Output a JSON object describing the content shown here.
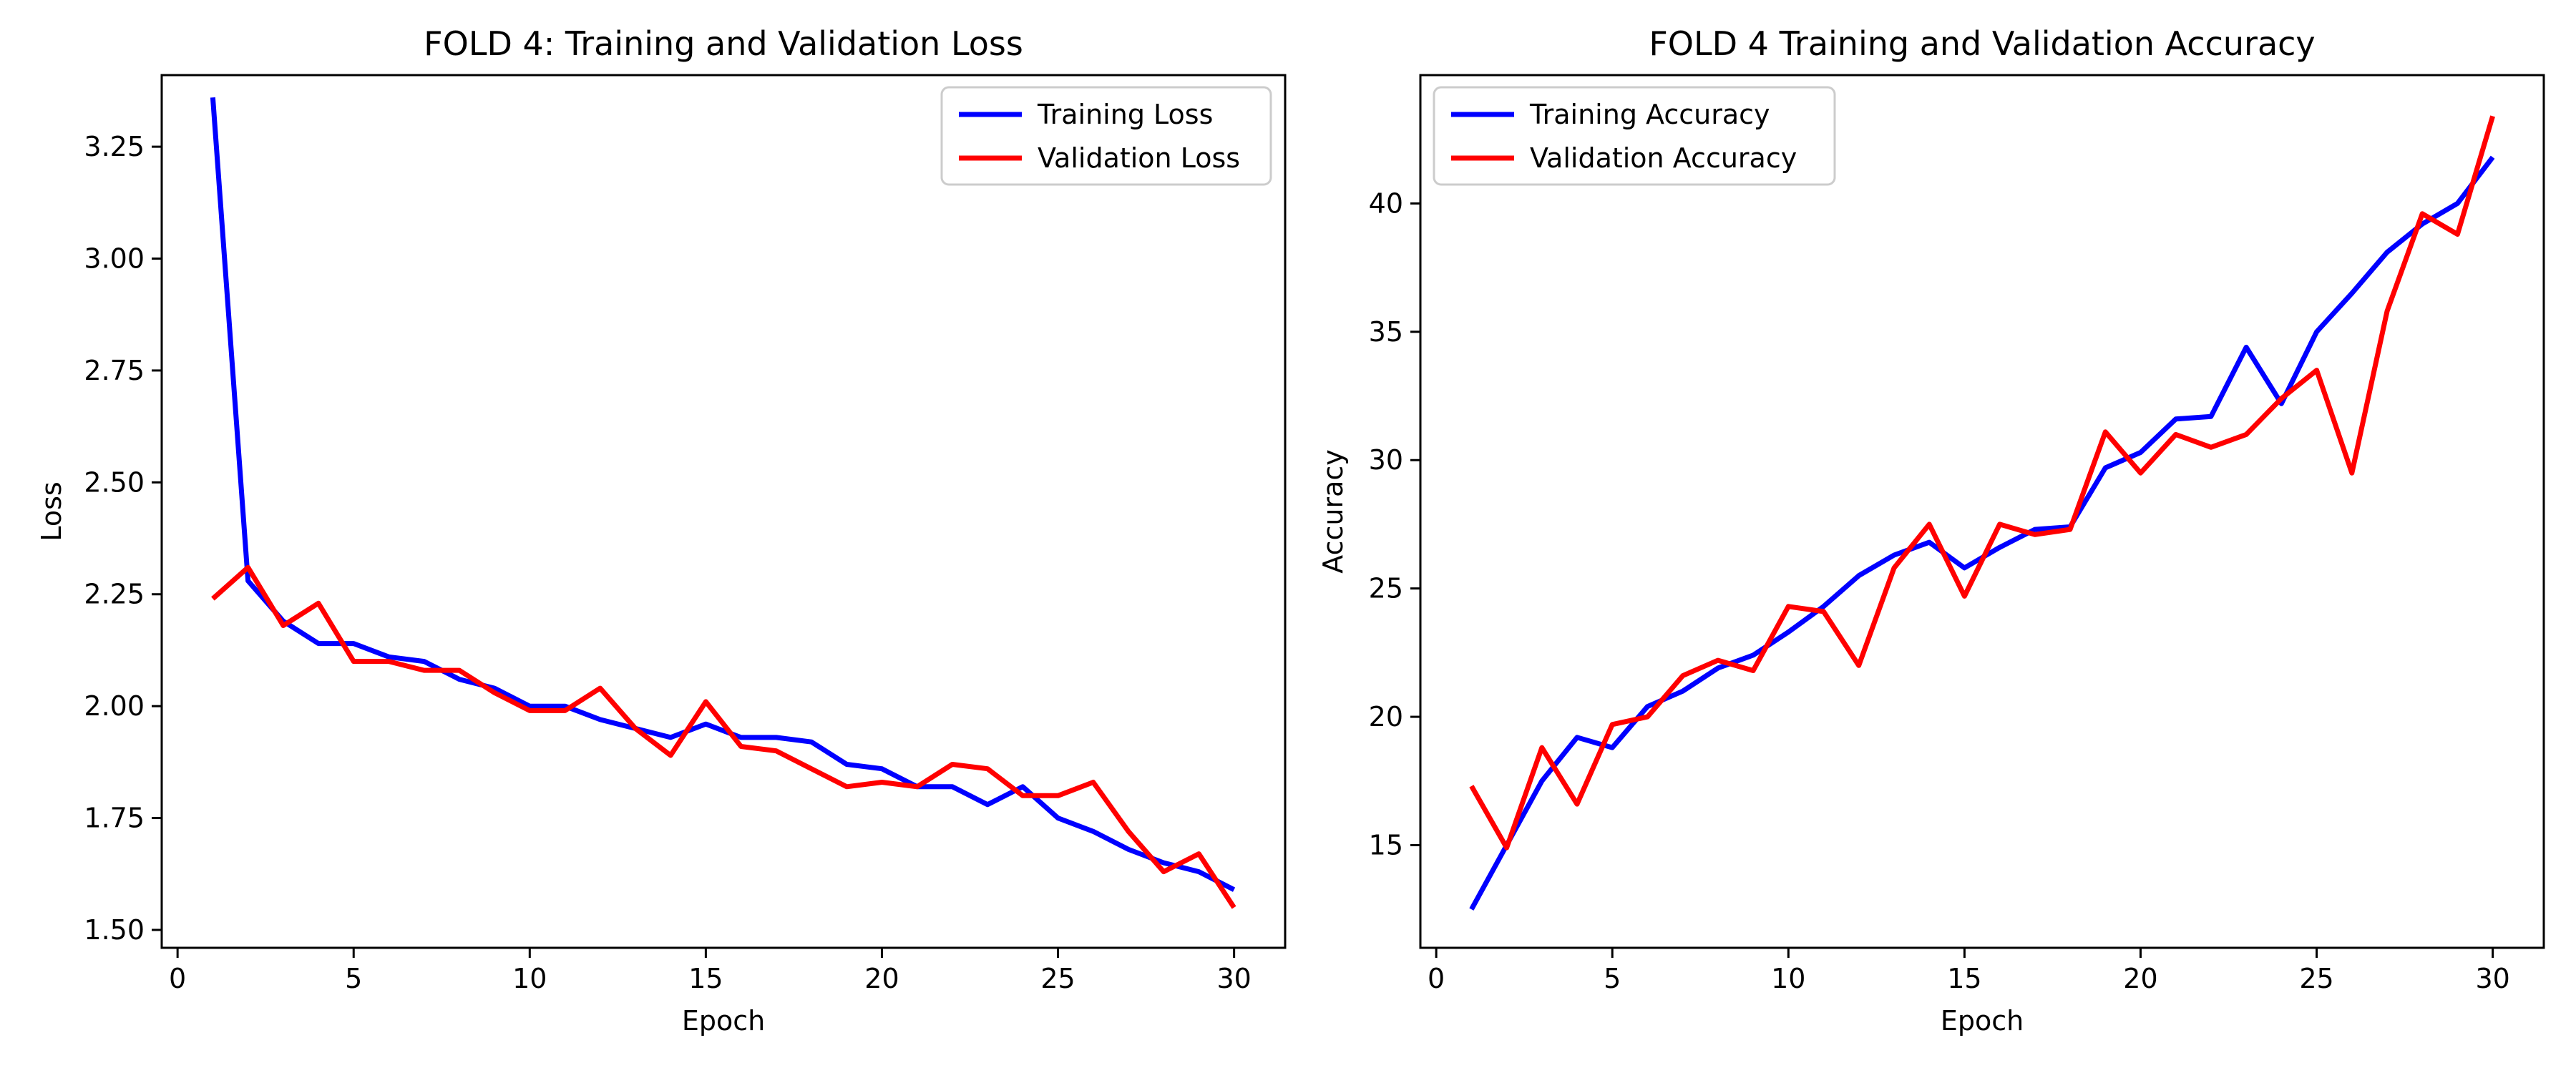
{
  "chart_data": [
    {
      "type": "line",
      "title": "FOLD 4: Training and Validation Loss",
      "xlabel": "Epoch",
      "ylabel": "Loss",
      "xlim": [
        -0.45,
        31.45
      ],
      "ylim": [
        1.46,
        3.41
      ],
      "x_ticks": [
        0,
        5,
        10,
        15,
        20,
        25,
        30
      ],
      "y_ticks": [
        1.5,
        1.75,
        2.0,
        2.25,
        2.5,
        2.75,
        3.0,
        3.25
      ],
      "y_tick_labels": [
        "1.50",
        "1.75",
        "2.00",
        "2.25",
        "2.50",
        "2.75",
        "3.00",
        "3.25"
      ],
      "grid": false,
      "legend_position": "upper right",
      "x": [
        1,
        2,
        3,
        4,
        5,
        6,
        7,
        8,
        9,
        10,
        11,
        12,
        13,
        14,
        15,
        16,
        17,
        18,
        19,
        20,
        21,
        22,
        23,
        24,
        25,
        26,
        27,
        28,
        29,
        30
      ],
      "series": [
        {
          "name": "Training Loss",
          "color": "#0000ff",
          "values": [
            3.36,
            2.28,
            2.19,
            2.14,
            2.14,
            2.11,
            2.1,
            2.06,
            2.04,
            2.0,
            2.0,
            1.97,
            1.95,
            1.93,
            1.96,
            1.93,
            1.93,
            1.92,
            1.87,
            1.86,
            1.82,
            1.82,
            1.78,
            1.82,
            1.75,
            1.72,
            1.68,
            1.65,
            1.63,
            1.59
          ]
        },
        {
          "name": "Validation Loss",
          "color": "#ff0000",
          "values": [
            2.24,
            2.31,
            2.18,
            2.23,
            2.1,
            2.1,
            2.08,
            2.08,
            2.03,
            1.99,
            1.99,
            2.04,
            1.95,
            1.89,
            2.01,
            1.91,
            1.9,
            1.86,
            1.82,
            1.83,
            1.82,
            1.87,
            1.86,
            1.8,
            1.8,
            1.83,
            1.72,
            1.63,
            1.67,
            1.55
          ]
        }
      ]
    },
    {
      "type": "line",
      "title": "FOLD 4 Training and Validation Accuracy",
      "xlabel": "Epoch",
      "ylabel": "Accuracy",
      "xlim": [
        -0.45,
        31.45
      ],
      "ylim": [
        11.0,
        45.0
      ],
      "x_ticks": [
        0,
        5,
        10,
        15,
        20,
        25,
        30
      ],
      "y_ticks": [
        15,
        20,
        25,
        30,
        35,
        40
      ],
      "y_tick_labels": [
        "15",
        "20",
        "25",
        "30",
        "35",
        "40"
      ],
      "grid": false,
      "legend_position": "upper left",
      "x": [
        1,
        2,
        3,
        4,
        5,
        6,
        7,
        8,
        9,
        10,
        11,
        12,
        13,
        14,
        15,
        16,
        17,
        18,
        19,
        20,
        21,
        22,
        23,
        24,
        25,
        26,
        27,
        28,
        29,
        30
      ],
      "series": [
        {
          "name": "Training Accuracy",
          "color": "#0000ff",
          "values": [
            12.5,
            15.0,
            17.5,
            19.2,
            18.8,
            20.4,
            21.0,
            21.9,
            22.4,
            23.3,
            24.3,
            25.5,
            26.3,
            26.8,
            25.8,
            26.6,
            27.3,
            27.4,
            29.7,
            30.3,
            31.6,
            31.7,
            34.4,
            32.2,
            35.0,
            36.5,
            38.1,
            39.2,
            40.0,
            41.8
          ]
        },
        {
          "name": "Validation Accuracy",
          "color": "#ff0000",
          "values": [
            17.3,
            14.9,
            18.8,
            16.6,
            19.7,
            20.0,
            21.6,
            22.2,
            21.8,
            24.3,
            24.1,
            22.0,
            25.8,
            27.5,
            24.7,
            27.5,
            27.1,
            27.3,
            31.1,
            29.5,
            31.0,
            30.5,
            31.0,
            32.4,
            33.5,
            29.5,
            35.8,
            39.6,
            38.8,
            43.4
          ]
        }
      ]
    }
  ]
}
